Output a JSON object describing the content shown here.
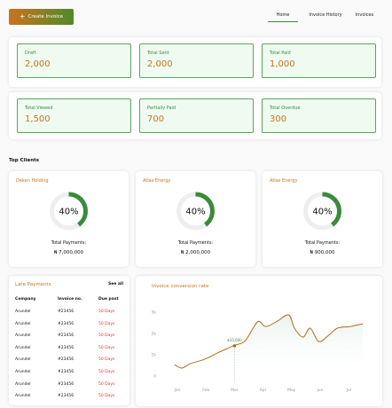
{
  "header": {
    "button": "Create Invoice",
    "tabs": [
      "Home",
      "Invoice History",
      "Invoices"
    ]
  },
  "stats": [
    {
      "label": "Draft",
      "value": "2,000"
    },
    {
      "label": "Total Sent",
      "value": "2,000"
    },
    {
      "label": "Total Paid",
      "value": "1,000"
    },
    {
      "label": "Total Viewed",
      "value": "1,500"
    },
    {
      "label": "Partially Paid",
      "value": "700"
    },
    {
      "label": "Total Overdue",
      "value": "300"
    }
  ],
  "top_clients": {
    "title": "Top Clients",
    "clients": [
      {
        "name": "Deken Holding",
        "value": 40,
        "value_label": "40%",
        "payments_label": "Total Payments:",
        "payments": "₦ 7,000,000"
      },
      {
        "name": "Atlas Energy",
        "value": 40,
        "value_label": "40%",
        "payments_label": "Total Payments:",
        "payments": "₦ 2,000,000"
      },
      {
        "name": "Atlas Energy",
        "value": 40,
        "value_label": "40%",
        "payments_label": "Total Payments:",
        "payments": "₦ 900,000"
      }
    ]
  },
  "late_payments": {
    "title": "Late Payments",
    "link": "See all",
    "columns": [
      "Company",
      "Invoice no.",
      "Due past"
    ],
    "rows": [
      [
        "Arundel",
        "#23456",
        "50 Days"
      ],
      [
        "Arundel",
        "#23456",
        "50 Days"
      ],
      [
        "Arundel",
        "#23456",
        "50 Days"
      ],
      [
        "Arundel",
        "#23456",
        "50 Days"
      ],
      [
        "Arundel",
        "#23456",
        "50 Days"
      ],
      [
        "Arundel",
        "#23456",
        "50 Days"
      ],
      [
        "Arundel",
        "#23456",
        "50 Days"
      ],
      [
        "Arundel",
        "#23456",
        "50 Days"
      ]
    ]
  },
  "chart_data": {
    "type": "line",
    "title": "Invoice conversion rate",
    "x": [
      -0.1,
      0.15,
      0.45,
      0.95,
      1.4,
      1.95,
      2.35,
      2.65,
      2.85,
      3.1,
      3.5,
      3.9,
      4.1,
      4.4,
      4.65,
      4.95,
      5.3,
      5.6,
      6.05,
      6.5
    ],
    "series": [
      {
        "color": "#b06a1c",
        "values": [
          540,
          375,
          580,
          790,
          1080,
          1420,
          1625,
          2250,
          2580,
          2330,
          2580,
          2875,
          2250,
          1830,
          2250,
          1625,
          1920,
          2250,
          2330,
          2460
        ]
      }
    ],
    "xlim": [
      -0.1,
      6.5
    ],
    "xticks": [
      {
        "value": 0,
        "label": "Jan"
      },
      {
        "value": 1,
        "label": "Feb"
      },
      {
        "value": 2,
        "label": "Mar"
      },
      {
        "value": 3,
        "label": "Apr"
      },
      {
        "value": 4,
        "label": "May"
      },
      {
        "value": 5,
        "label": "Jun"
      },
      {
        "value": 6,
        "label": "Jul"
      }
    ],
    "ylim": [
      0,
      3000
    ],
    "yticks": [
      0,
      {
        "value": 1000,
        "label": "1k"
      },
      {
        "value": 2000,
        "label": "2k"
      },
      {
        "value": 3000,
        "label": "3k"
      }
    ],
    "annotation": {
      "x": 2,
      "y": 1420,
      "text": "$10,000"
    }
  }
}
